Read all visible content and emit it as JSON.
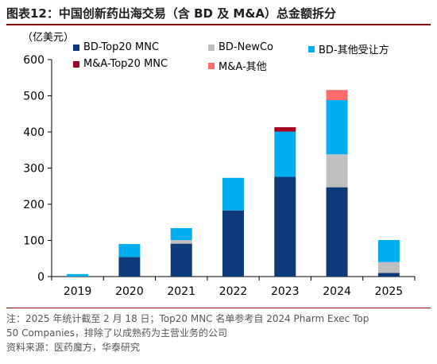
{
  "title": "图表12：中国创新药出海交易（含 BD 及 M&A）总金额拆分",
  "unit_label": "（亿美元）",
  "colors": {
    "bd_top20": "#0d3b7a",
    "bd_newco": "#bfbfbf",
    "bd_other": "#00aeef",
    "ma_top20": "#a50021",
    "ma_other": "#ff6b6b"
  },
  "chart_data": {
    "type": "bar",
    "stacked": true,
    "categories": [
      "2019",
      "2020",
      "2021",
      "2022",
      "2023",
      "2024",
      "2025"
    ],
    "ylim": [
      0,
      600
    ],
    "yticks": [
      "0",
      "100",
      "200",
      "300",
      "400",
      "500",
      "600"
    ],
    "ytick_values": [
      0,
      100,
      200,
      300,
      400,
      500,
      600
    ],
    "legend_position": "top",
    "series": [
      {
        "name": "BD-Top20 MNC",
        "color": "#0d3b7a",
        "values": [
          0,
          54,
          91,
          183,
          276,
          247,
          10
        ]
      },
      {
        "name": "BD-NewCo",
        "color": "#bfbfbf",
        "values": [
          0,
          0,
          10,
          0,
          0,
          91,
          30
        ]
      },
      {
        "name": "BD-其他受让方",
        "color": "#00aeef",
        "values": [
          7,
          36,
          33,
          90,
          125,
          150,
          61
        ]
      },
      {
        "name": "M&A-Top20 MNC",
        "color": "#a50021",
        "values": [
          0,
          0,
          0,
          0,
          12,
          0,
          0
        ]
      },
      {
        "name": "M&A-其他",
        "color": "#ff6b6b",
        "values": [
          0,
          0,
          0,
          0,
          0,
          28,
          0
        ]
      }
    ]
  },
  "notes": {
    "line1": "注：2025 年统计截至 2 月 18 日；Top20 MNC 名单参考自 2024 Pharm Exec Top",
    "line2": "50 Companies，排除了以成熟药为主营业务的公司",
    "source": "资料来源：医药魔方，华泰研究"
  }
}
